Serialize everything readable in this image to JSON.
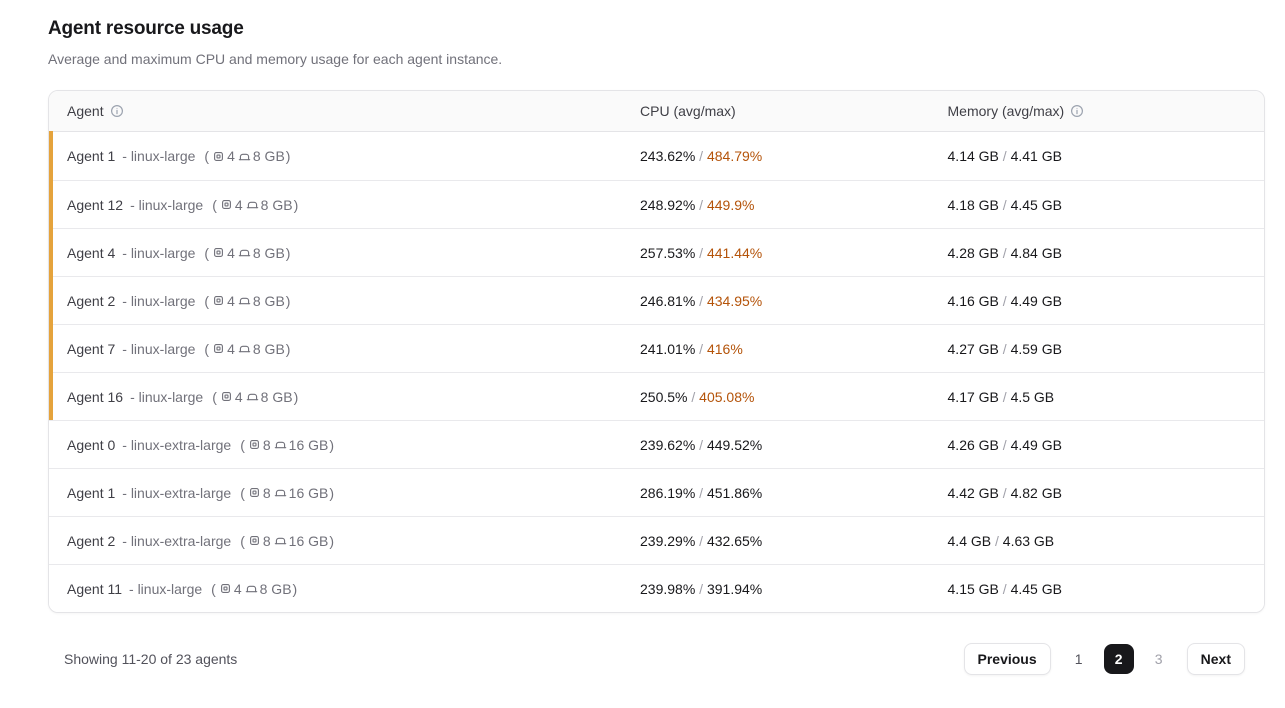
{
  "page": {
    "title": "Agent resource usage",
    "subtitle": "Average and maximum CPU and memory usage for each agent instance."
  },
  "table": {
    "columns": [
      {
        "label": "Agent",
        "info_icon": "info-circle"
      },
      {
        "label": "CPU (avg/max)"
      },
      {
        "label": "Memory (avg/max)",
        "info_icon": "info-circle"
      }
    ],
    "value_separator": " / ",
    "spec_open": "(",
    "spec_close": ")",
    "rows": [
      {
        "name": "Agent 1",
        "instance": "- linux-large",
        "cpu_count": "4",
        "mem_size": "8 GB",
        "cpu_avg": "243.62%",
        "cpu_max": "484.79%",
        "mem_avg": "4.14 GB",
        "mem_max": "4.41 GB",
        "flagged": true
      },
      {
        "name": "Agent 12",
        "instance": "- linux-large",
        "cpu_count": "4",
        "mem_size": "8 GB",
        "cpu_avg": "248.92%",
        "cpu_max": "449.9%",
        "mem_avg": "4.18 GB",
        "mem_max": "4.45 GB",
        "flagged": true
      },
      {
        "name": "Agent 4",
        "instance": "- linux-large",
        "cpu_count": "4",
        "mem_size": "8 GB",
        "cpu_avg": "257.53%",
        "cpu_max": "441.44%",
        "mem_avg": "4.28 GB",
        "mem_max": "4.84 GB",
        "flagged": true
      },
      {
        "name": "Agent 2",
        "instance": "- linux-large",
        "cpu_count": "4",
        "mem_size": "8 GB",
        "cpu_avg": "246.81%",
        "cpu_max": "434.95%",
        "mem_avg": "4.16 GB",
        "mem_max": "4.49 GB",
        "flagged": true
      },
      {
        "name": "Agent 7",
        "instance": "- linux-large",
        "cpu_count": "4",
        "mem_size": "8 GB",
        "cpu_avg": "241.01%",
        "cpu_max": "416%",
        "mem_avg": "4.27 GB",
        "mem_max": "4.59 GB",
        "flagged": true
      },
      {
        "name": "Agent 16",
        "instance": "- linux-large",
        "cpu_count": "4",
        "mem_size": "8 GB",
        "cpu_avg": "250.5%",
        "cpu_max": "405.08%",
        "mem_avg": "4.17 GB",
        "mem_max": "4.5 GB",
        "flagged": true
      },
      {
        "name": "Agent 0",
        "instance": "- linux-extra-large",
        "cpu_count": "8",
        "mem_size": "16 GB",
        "cpu_avg": "239.62%",
        "cpu_max": "449.52%",
        "mem_avg": "4.26 GB",
        "mem_max": "4.49 GB",
        "flagged": false
      },
      {
        "name": "Agent 1",
        "instance": "- linux-extra-large",
        "cpu_count": "8",
        "mem_size": "16 GB",
        "cpu_avg": "286.19%",
        "cpu_max": "451.86%",
        "mem_avg": "4.42 GB",
        "mem_max": "4.82 GB",
        "flagged": false
      },
      {
        "name": "Agent 2",
        "instance": "- linux-extra-large",
        "cpu_count": "8",
        "mem_size": "16 GB",
        "cpu_avg": "239.29%",
        "cpu_max": "432.65%",
        "mem_avg": "4.4 GB",
        "mem_max": "4.63 GB",
        "flagged": false
      },
      {
        "name": "Agent 11",
        "instance": "- linux-large",
        "cpu_count": "4",
        "mem_size": "8 GB",
        "cpu_avg": "239.98%",
        "cpu_max": "391.94%",
        "mem_avg": "4.15 GB",
        "mem_max": "4.45 GB",
        "flagged": false
      }
    ]
  },
  "footer": {
    "showing_text": "Showing 11-20 of 23 agents",
    "pagination": {
      "previous_label": "Previous",
      "next_label": "Next",
      "pages": [
        {
          "label": "1",
          "active": false
        },
        {
          "label": "2",
          "active": true
        },
        {
          "label": "3",
          "active": false
        }
      ]
    }
  },
  "colors": {
    "accent_bar": "#e5a33c",
    "warning_text": "#b45309",
    "active_page_bg": "#18181b",
    "header_bg": "#fafafa",
    "border": "#e4e4e7"
  }
}
